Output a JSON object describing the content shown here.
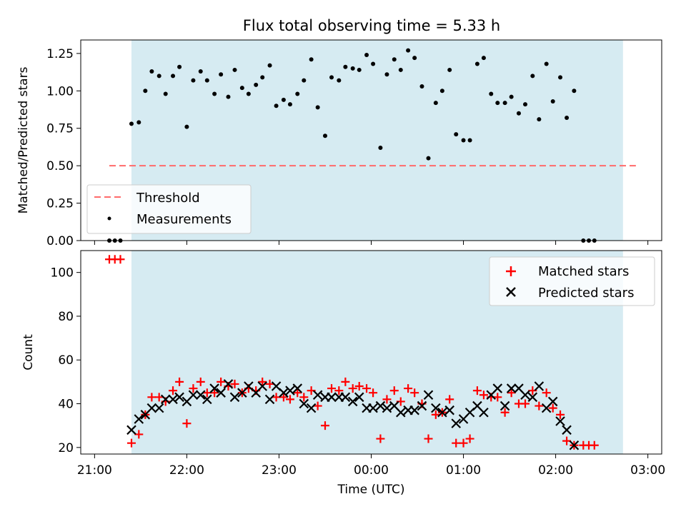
{
  "title": "Flux total observing time = 5.33 h",
  "colors": {
    "shade": "#add8e6",
    "threshold": "#ff6b6b",
    "measurements": "#000000",
    "matched": "#ff0000",
    "predicted": "#000000"
  },
  "chart_data": [
    {
      "type": "scatter",
      "panel": "top",
      "title": "Flux total observing time = 5.33 h",
      "xlabel": "",
      "ylabel": "Matched/Predicted stars",
      "x_unit": "hours since 21:00 UTC",
      "xlim": [
        -0.15,
        6.15
      ],
      "ylim": [
        0.0,
        1.34
      ],
      "yticks": [
        "0.00",
        "0.25",
        "0.50",
        "0.75",
        "1.00",
        "1.25"
      ],
      "observing_window": [
        0.4,
        5.73
      ],
      "legend": "lower-left",
      "series": [
        {
          "name": "Threshold",
          "style": "dashed-line",
          "x": [
            0.16,
            5.87
          ],
          "y": [
            0.5,
            0.5
          ]
        },
        {
          "name": "Measurements",
          "style": "dots",
          "points": [
            [
              0.16,
              0.0
            ],
            [
              0.22,
              0.0
            ],
            [
              0.28,
              0.0
            ],
            [
              0.4,
              0.78
            ],
            [
              0.48,
              0.79
            ],
            [
              0.55,
              1.0
            ],
            [
              0.62,
              1.13
            ],
            [
              0.7,
              1.1
            ],
            [
              0.77,
              0.98
            ],
            [
              0.85,
              1.1
            ],
            [
              0.92,
              1.16
            ],
            [
              1.0,
              0.76
            ],
            [
              1.07,
              1.07
            ],
            [
              1.15,
              1.13
            ],
            [
              1.22,
              1.07
            ],
            [
              1.3,
              0.98
            ],
            [
              1.37,
              1.11
            ],
            [
              1.45,
              0.96
            ],
            [
              1.52,
              1.14
            ],
            [
              1.6,
              1.02
            ],
            [
              1.67,
              0.98
            ],
            [
              1.75,
              1.04
            ],
            [
              1.82,
              1.09
            ],
            [
              1.9,
              1.17
            ],
            [
              1.97,
              0.9
            ],
            [
              2.05,
              0.94
            ],
            [
              2.12,
              0.91
            ],
            [
              2.2,
              0.98
            ],
            [
              2.27,
              1.07
            ],
            [
              2.35,
              1.21
            ],
            [
              2.42,
              0.89
            ],
            [
              2.5,
              0.7
            ],
            [
              2.57,
              1.09
            ],
            [
              2.65,
              1.07
            ],
            [
              2.72,
              1.16
            ],
            [
              2.8,
              1.15
            ],
            [
              2.87,
              1.14
            ],
            [
              2.95,
              1.24
            ],
            [
              3.02,
              1.18
            ],
            [
              3.1,
              0.62
            ],
            [
              3.17,
              1.11
            ],
            [
              3.25,
              1.21
            ],
            [
              3.32,
              1.14
            ],
            [
              3.4,
              1.27
            ],
            [
              3.47,
              1.22
            ],
            [
              3.55,
              1.03
            ],
            [
              3.62,
              0.55
            ],
            [
              3.7,
              0.92
            ],
            [
              3.77,
              1.0
            ],
            [
              3.85,
              1.14
            ],
            [
              3.92,
              0.71
            ],
            [
              4.0,
              0.67
            ],
            [
              4.07,
              0.67
            ],
            [
              4.15,
              1.18
            ],
            [
              4.22,
              1.22
            ],
            [
              4.3,
              0.98
            ],
            [
              4.37,
              0.92
            ],
            [
              4.45,
              0.92
            ],
            [
              4.52,
              0.96
            ],
            [
              4.6,
              0.85
            ],
            [
              4.67,
              0.91
            ],
            [
              4.75,
              1.1
            ],
            [
              4.82,
              0.81
            ],
            [
              4.9,
              1.18
            ],
            [
              4.97,
              0.93
            ],
            [
              5.05,
              1.09
            ],
            [
              5.12,
              0.82
            ],
            [
              5.2,
              1.0
            ],
            [
              5.3,
              0.0
            ],
            [
              5.36,
              0.0
            ],
            [
              5.42,
              0.0
            ]
          ]
        }
      ]
    },
    {
      "type": "scatter",
      "panel": "bottom",
      "title": "",
      "xlabel": "Time (UTC)",
      "ylabel": "Count",
      "x_unit": "hours since 21:00 UTC",
      "xlim": [
        -0.15,
        6.15
      ],
      "ylim": [
        17,
        110
      ],
      "xticks": [
        "21:00",
        "22:00",
        "23:00",
        "00:00",
        "01:00",
        "02:00",
        "03:00"
      ],
      "yticks": [
        "20",
        "40",
        "60",
        "80",
        "100"
      ],
      "observing_window": [
        0.4,
        5.73
      ],
      "legend": "upper-right",
      "series": [
        {
          "name": "Matched stars",
          "marker": "+",
          "points": [
            [
              0.16,
              106
            ],
            [
              0.22,
              106
            ],
            [
              0.28,
              106
            ],
            [
              0.4,
              22
            ],
            [
              0.48,
              26
            ],
            [
              0.55,
              35
            ],
            [
              0.62,
              43
            ],
            [
              0.7,
              43
            ],
            [
              0.77,
              41
            ],
            [
              0.85,
              46
            ],
            [
              0.92,
              50
            ],
            [
              1.0,
              31
            ],
            [
              1.07,
              47
            ],
            [
              1.15,
              50
            ],
            [
              1.22,
              45
            ],
            [
              1.3,
              45
            ],
            [
              1.37,
              50
            ],
            [
              1.45,
              48
            ],
            [
              1.52,
              49
            ],
            [
              1.6,
              45
            ],
            [
              1.67,
              47
            ],
            [
              1.75,
              46
            ],
            [
              1.82,
              50
            ],
            [
              1.9,
              49
            ],
            [
              1.97,
              43
            ],
            [
              2.05,
              43
            ],
            [
              2.12,
              42
            ],
            [
              2.2,
              45
            ],
            [
              2.27,
              43
            ],
            [
              2.35,
              46
            ],
            [
              2.42,
              39
            ],
            [
              2.5,
              30
            ],
            [
              2.57,
              47
            ],
            [
              2.65,
              46
            ],
            [
              2.72,
              50
            ],
            [
              2.8,
              47
            ],
            [
              2.87,
              48
            ],
            [
              2.95,
              47
            ],
            [
              3.02,
              45
            ],
            [
              3.1,
              24
            ],
            [
              3.17,
              42
            ],
            [
              3.25,
              46
            ],
            [
              3.32,
              41
            ],
            [
              3.4,
              47
            ],
            [
              3.47,
              45
            ],
            [
              3.55,
              40
            ],
            [
              3.62,
              24
            ],
            [
              3.7,
              35
            ],
            [
              3.77,
              36
            ],
            [
              3.85,
              42
            ],
            [
              3.92,
              22
            ],
            [
              4.0,
              22
            ],
            [
              4.07,
              24
            ],
            [
              4.15,
              46
            ],
            [
              4.22,
              44
            ],
            [
              4.3,
              43
            ],
            [
              4.37,
              43
            ],
            [
              4.45,
              36
            ],
            [
              4.52,
              45
            ],
            [
              4.6,
              40
            ],
            [
              4.67,
              40
            ],
            [
              4.75,
              46
            ],
            [
              4.82,
              39
            ],
            [
              4.9,
              45
            ],
            [
              4.97,
              38
            ],
            [
              5.05,
              35
            ],
            [
              5.12,
              23
            ],
            [
              5.2,
              21
            ],
            [
              5.3,
              21
            ],
            [
              5.36,
              21
            ],
            [
              5.42,
              21
            ]
          ]
        },
        {
          "name": "Predicted stars",
          "marker": "x",
          "points": [
            [
              0.4,
              28
            ],
            [
              0.48,
              33
            ],
            [
              0.55,
              35
            ],
            [
              0.62,
              38
            ],
            [
              0.7,
              38
            ],
            [
              0.77,
              42
            ],
            [
              0.85,
              42
            ],
            [
              0.92,
              43
            ],
            [
              1.0,
              41
            ],
            [
              1.07,
              44
            ],
            [
              1.15,
              44
            ],
            [
              1.22,
              42
            ],
            [
              1.3,
              47
            ],
            [
              1.37,
              45
            ],
            [
              1.45,
              49
            ],
            [
              1.52,
              43
            ],
            [
              1.6,
              45
            ],
            [
              1.67,
              48
            ],
            [
              1.75,
              45
            ],
            [
              1.82,
              48
            ],
            [
              1.9,
              42
            ],
            [
              1.97,
              48
            ],
            [
              2.05,
              45
            ],
            [
              2.12,
              46
            ],
            [
              2.2,
              47
            ],
            [
              2.27,
              40
            ],
            [
              2.35,
              38
            ],
            [
              2.42,
              44
            ],
            [
              2.5,
              43
            ],
            [
              2.57,
              43
            ],
            [
              2.65,
              43
            ],
            [
              2.72,
              43
            ],
            [
              2.8,
              41
            ],
            [
              2.87,
              43
            ],
            [
              2.95,
              38
            ],
            [
              3.02,
              38
            ],
            [
              3.1,
              39
            ],
            [
              3.17,
              38
            ],
            [
              3.25,
              39
            ],
            [
              3.32,
              36
            ],
            [
              3.4,
              37
            ],
            [
              3.47,
              37
            ],
            [
              3.55,
              39
            ],
            [
              3.62,
              44
            ],
            [
              3.7,
              38
            ],
            [
              3.77,
              36
            ],
            [
              3.85,
              37
            ],
            [
              3.92,
              31
            ],
            [
              4.0,
              33
            ],
            [
              4.07,
              36
            ],
            [
              4.15,
              39
            ],
            [
              4.22,
              36
            ],
            [
              4.3,
              44
            ],
            [
              4.37,
              47
            ],
            [
              4.45,
              39
            ],
            [
              4.52,
              47
            ],
            [
              4.6,
              47
            ],
            [
              4.67,
              44
            ],
            [
              4.75,
              43
            ],
            [
              4.82,
              48
            ],
            [
              4.9,
              38
            ],
            [
              4.97,
              41
            ],
            [
              5.05,
              32
            ],
            [
              5.12,
              28
            ],
            [
              5.2,
              21
            ]
          ]
        }
      ]
    }
  ]
}
